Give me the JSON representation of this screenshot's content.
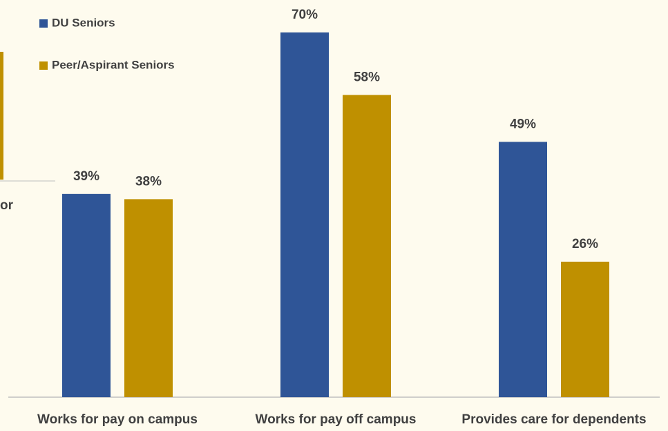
{
  "chart_data": {
    "type": "bar",
    "categories": [
      "Works for pay on campus",
      "Works for pay off campus",
      "Provides care for dependents"
    ],
    "series": [
      {
        "name": "DU Seniors",
        "color": "#2f5597",
        "values": [
          39,
          70,
          49
        ],
        "value_labels": [
          "39%",
          "70%",
          "49%"
        ]
      },
      {
        "name": "Peer/Aspirant Seniors",
        "color": "#bf9000",
        "values": [
          38,
          58,
          26
        ],
        "value_labels": [
          "38%",
          "58%",
          "26%"
        ]
      }
    ],
    "ylim": [
      0,
      70
    ],
    "legend": "top-left",
    "annotations": [
      "or"
    ]
  }
}
